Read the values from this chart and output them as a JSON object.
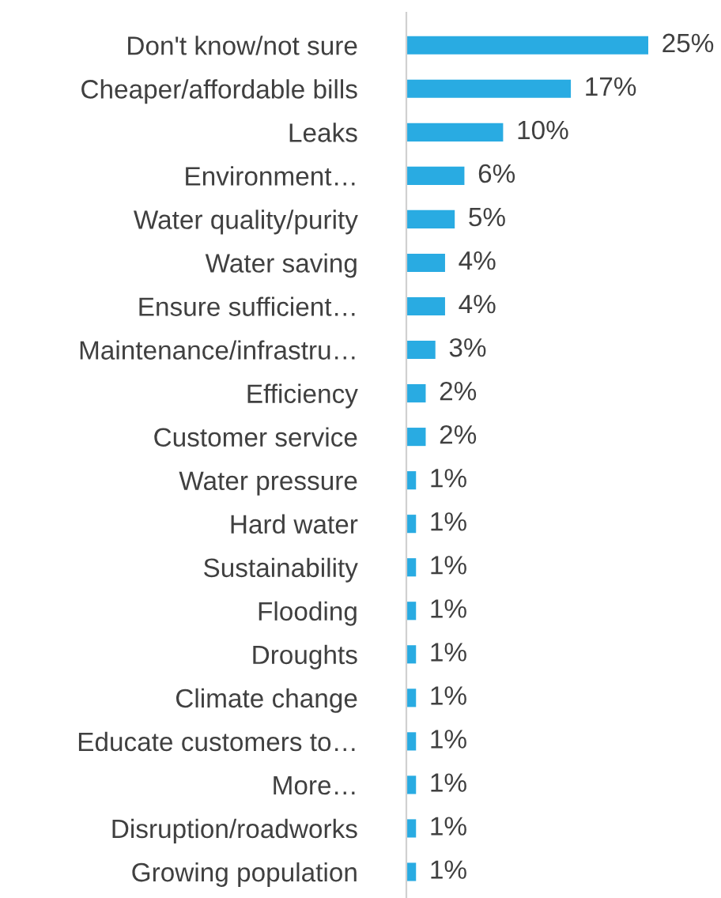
{
  "chart_data": {
    "type": "bar",
    "orientation": "horizontal",
    "categories": [
      "Don't know/not sure",
      "Cheaper/affordable bills",
      "Leaks",
      "Environment…",
      "Water quality/purity",
      "Water saving",
      "Ensure sufficient…",
      "Maintenance/infrastru…",
      "Efficiency",
      "Customer service",
      "Water pressure",
      "Hard water",
      "Sustainability",
      "Flooding",
      "Droughts",
      "Climate change",
      "Educate customers to…",
      "More…",
      "Disruption/roadworks",
      "Growing population"
    ],
    "values": [
      25,
      17,
      10,
      6,
      5,
      4,
      4,
      3,
      2,
      2,
      1,
      1,
      1,
      1,
      1,
      1,
      1,
      1,
      1,
      1
    ],
    "value_labels": [
      "25%",
      "17%",
      "10%",
      "6%",
      "5%",
      "4%",
      "4%",
      "3%",
      "2%",
      "2%",
      "1%",
      "1%",
      "1%",
      "1%",
      "1%",
      "1%",
      "1%",
      "1%",
      "1%",
      "1%"
    ],
    "color": "#29abe2",
    "grid": false,
    "legend": false
  }
}
